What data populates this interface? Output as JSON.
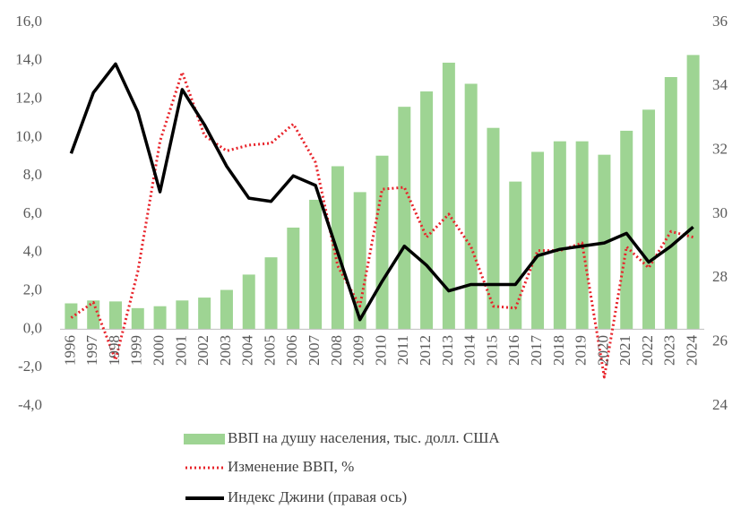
{
  "chart_data": {
    "type": "bar",
    "categories": [
      "1996",
      "1997",
      "1998",
      "1999",
      "2000",
      "2001",
      "2002",
      "2003",
      "2004",
      "2005",
      "2006",
      "2007",
      "2008",
      "2009",
      "2010",
      "2011",
      "2012",
      "2013",
      "2014",
      "2015",
      "2016",
      "2017",
      "2018",
      "2019",
      "2020",
      "2021",
      "2022",
      "2023",
      "2024"
    ],
    "series": [
      {
        "name": "ВВП на душу населения, тыс. долл. США",
        "type": "bar",
        "color": "#9ed493",
        "values": [
          1.35,
          1.5,
          1.45,
          1.1,
          1.2,
          1.5,
          1.65,
          2.05,
          2.85,
          3.75,
          5.3,
          6.75,
          8.5,
          7.15,
          9.05,
          11.6,
          12.4,
          13.9,
          12.8,
          10.5,
          7.7,
          9.25,
          9.8,
          9.8,
          9.1,
          10.35,
          11.45,
          13.15,
          14.3
        ]
      },
      {
        "name": "Изменение ВВП, %",
        "type": "line",
        "style": "dotted",
        "color": "#e8232a",
        "values": [
          0.6,
          1.4,
          -1.6,
          3.0,
          9.8,
          13.4,
          10.1,
          9.3,
          9.6,
          9.7,
          10.7,
          8.7,
          3.3,
          1.2,
          7.3,
          7.4,
          4.8,
          6.0,
          4.3,
          1.2,
          1.1,
          4.1,
          4.1,
          4.5,
          -2.5,
          4.3,
          3.2,
          5.1,
          4.8
        ]
      },
      {
        "name": "Индекс Джини (правая ось)",
        "type": "line",
        "style": "solid",
        "color": "#000000",
        "axis": "y2",
        "values": [
          31.9,
          33.8,
          34.7,
          33.2,
          30.7,
          33.9,
          32.8,
          31.5,
          30.5,
          30.4,
          31.2,
          30.9,
          28.8,
          26.7,
          27.9,
          29.0,
          28.4,
          27.6,
          27.8,
          27.8,
          27.8,
          28.7,
          28.9,
          29.0,
          29.1,
          29.4,
          28.5,
          29.0,
          29.6
        ]
      }
    ],
    "ylim": [
      -4,
      16
    ],
    "yticks": [
      {
        "value": -4,
        "label": "-4,0"
      },
      {
        "value": -2,
        "label": "-2,0"
      },
      {
        "value": 0,
        "label": "0,0"
      },
      {
        "value": 2,
        "label": "2,0"
      },
      {
        "value": 4,
        "label": "4,0"
      },
      {
        "value": 6,
        "label": "6,0"
      },
      {
        "value": 8,
        "label": "8,0"
      },
      {
        "value": 10,
        "label": "10,0"
      },
      {
        "value": 12,
        "label": "12,0"
      },
      {
        "value": 14,
        "label": "14,0"
      },
      {
        "value": 16,
        "label": "16,0"
      }
    ],
    "y2lim": [
      24,
      36
    ],
    "y2ticks": [
      24,
      26,
      28,
      30,
      32,
      34,
      36
    ],
    "grid": false,
    "legend": "bottom"
  }
}
